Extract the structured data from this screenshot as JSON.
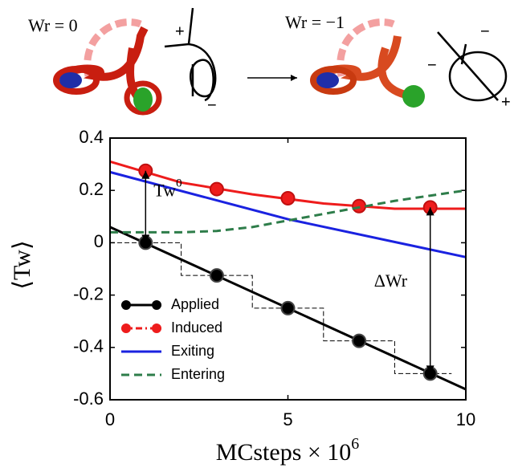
{
  "chart_data": {
    "type": "line",
    "ylabel": "⟨Tw⟩",
    "xlabel": {
      "text": "MCsteps × 10",
      "sup": "6"
    },
    "xlim": [
      0,
      10
    ],
    "xticks": [
      0,
      5,
      10
    ],
    "ylim": [
      -0.6,
      0.4
    ],
    "yticks": [
      0.4,
      0.2,
      0,
      -0.2,
      -0.4,
      -0.6
    ],
    "legend": "lower left",
    "series": [
      {
        "name": "Applied",
        "color": "#000000",
        "style": "solid-marker",
        "x": [
          1,
          3,
          5,
          7,
          9
        ],
        "values": [
          0,
          -0.125,
          -0.25,
          -0.375,
          -0.5
        ],
        "fit": {
          "x": [
            0,
            10
          ],
          "values": [
            0.06,
            -0.56
          ]
        }
      },
      {
        "name": "Induced",
        "color": "#ee1c1c",
        "style": "dashdot-marker",
        "x": [
          1,
          3,
          5,
          7,
          9
        ],
        "values": [
          0.275,
          0.205,
          0.17,
          0.14,
          0.135
        ],
        "fit": {
          "x": [
            0,
            2,
            4,
            6,
            8,
            10
          ],
          "values": [
            0.31,
            0.23,
            0.185,
            0.15,
            0.13,
            0.13
          ]
        }
      },
      {
        "name": "Exiting",
        "color": "#1a22e0",
        "style": "solid",
        "x": [
          0,
          5,
          10
        ],
        "values": [
          0.27,
          0.09,
          -0.055
        ]
      },
      {
        "name": "Entering",
        "color": "#2e7d4a",
        "style": "dashed",
        "x": [
          0,
          1,
          2,
          3,
          4,
          5,
          6,
          7,
          8,
          9,
          10
        ],
        "values": [
          0.04,
          0.04,
          0.04,
          0.045,
          0.06,
          0.085,
          0.11,
          0.135,
          0.16,
          0.18,
          0.2
        ]
      }
    ],
    "steps": {
      "color": "#000000",
      "x": [
        0,
        2,
        2,
        4,
        4,
        6,
        6,
        8,
        8,
        9.6
      ],
      "values": [
        0,
        0,
        -0.125,
        -0.125,
        -0.25,
        -0.25,
        -0.375,
        -0.375,
        -0.5,
        -0.5
      ]
    },
    "annotations": [
      {
        "text": "Tw",
        "sup": "0",
        "x": 1,
        "from": 0,
        "to": 0.275
      },
      {
        "text": "ΔWr",
        "x": 9,
        "from": 0.135,
        "to": -0.5
      }
    ]
  },
  "illustrations": {
    "left_label": "Wr = 0",
    "right_label": "Wr = −1",
    "plus": "+",
    "minus": "−"
  }
}
